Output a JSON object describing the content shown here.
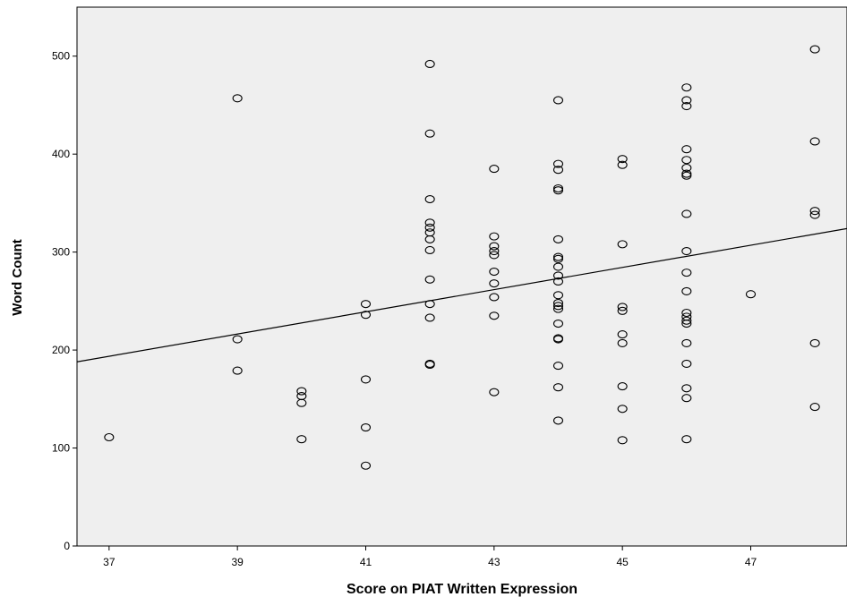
{
  "chart_data": {
    "type": "scatter",
    "title": "",
    "xlabel": "Score on PIAT Written Expression",
    "ylabel": "Word Count",
    "xlim": [
      36.5,
      48.5
    ],
    "ylim": [
      0,
      550
    ],
    "x_ticks": [
      37,
      39,
      41,
      43,
      45,
      47
    ],
    "y_ticks": [
      0,
      100,
      200,
      300,
      400,
      500
    ],
    "x_tick_labels": [
      "37",
      "39",
      "41",
      "43",
      "45",
      "47"
    ],
    "y_tick_labels": [
      "0",
      "100",
      "200",
      "300",
      "400",
      "500"
    ],
    "grid": false,
    "plot_background": "#efefef",
    "marker_color": "#000000",
    "fit_line": {
      "x": [
        36.5,
        48.5
      ],
      "y": [
        188,
        324
      ]
    },
    "points": [
      {
        "x": 37,
        "y": 111
      },
      {
        "x": 39,
        "y": 457
      },
      {
        "x": 39,
        "y": 211
      },
      {
        "x": 39,
        "y": 179
      },
      {
        "x": 40,
        "y": 158
      },
      {
        "x": 40,
        "y": 153
      },
      {
        "x": 40,
        "y": 146
      },
      {
        "x": 40,
        "y": 109
      },
      {
        "x": 41,
        "y": 247
      },
      {
        "x": 41,
        "y": 236
      },
      {
        "x": 41,
        "y": 170
      },
      {
        "x": 41,
        "y": 121
      },
      {
        "x": 41,
        "y": 82
      },
      {
        "x": 42,
        "y": 492
      },
      {
        "x": 42,
        "y": 421
      },
      {
        "x": 42,
        "y": 354
      },
      {
        "x": 42,
        "y": 330
      },
      {
        "x": 42,
        "y": 325
      },
      {
        "x": 42,
        "y": 320
      },
      {
        "x": 42,
        "y": 313
      },
      {
        "x": 42,
        "y": 302
      },
      {
        "x": 42,
        "y": 272
      },
      {
        "x": 42,
        "y": 247
      },
      {
        "x": 42,
        "y": 233
      },
      {
        "x": 42,
        "y": 186
      },
      {
        "x": 42,
        "y": 185
      },
      {
        "x": 43,
        "y": 385
      },
      {
        "x": 43,
        "y": 316
      },
      {
        "x": 43,
        "y": 306
      },
      {
        "x": 43,
        "y": 301
      },
      {
        "x": 43,
        "y": 297
      },
      {
        "x": 43,
        "y": 280
      },
      {
        "x": 43,
        "y": 268
      },
      {
        "x": 43,
        "y": 254
      },
      {
        "x": 43,
        "y": 235
      },
      {
        "x": 43,
        "y": 157
      },
      {
        "x": 44,
        "y": 455
      },
      {
        "x": 44,
        "y": 390
      },
      {
        "x": 44,
        "y": 384
      },
      {
        "x": 44,
        "y": 365
      },
      {
        "x": 44,
        "y": 363
      },
      {
        "x": 44,
        "y": 313
      },
      {
        "x": 44,
        "y": 295
      },
      {
        "x": 44,
        "y": 293
      },
      {
        "x": 44,
        "y": 285
      },
      {
        "x": 44,
        "y": 276
      },
      {
        "x": 44,
        "y": 270
      },
      {
        "x": 44,
        "y": 256
      },
      {
        "x": 44,
        "y": 248
      },
      {
        "x": 44,
        "y": 245
      },
      {
        "x": 44,
        "y": 242
      },
      {
        "x": 44,
        "y": 227
      },
      {
        "x": 44,
        "y": 212
      },
      {
        "x": 44,
        "y": 211
      },
      {
        "x": 44,
        "y": 184
      },
      {
        "x": 44,
        "y": 162
      },
      {
        "x": 44,
        "y": 128
      },
      {
        "x": 45,
        "y": 395
      },
      {
        "x": 45,
        "y": 389
      },
      {
        "x": 45,
        "y": 308
      },
      {
        "x": 45,
        "y": 244
      },
      {
        "x": 45,
        "y": 240
      },
      {
        "x": 45,
        "y": 216
      },
      {
        "x": 45,
        "y": 207
      },
      {
        "x": 45,
        "y": 163
      },
      {
        "x": 45,
        "y": 140
      },
      {
        "x": 45,
        "y": 108
      },
      {
        "x": 46,
        "y": 468
      },
      {
        "x": 46,
        "y": 455
      },
      {
        "x": 46,
        "y": 449
      },
      {
        "x": 46,
        "y": 405
      },
      {
        "x": 46,
        "y": 394
      },
      {
        "x": 46,
        "y": 386
      },
      {
        "x": 46,
        "y": 380
      },
      {
        "x": 46,
        "y": 378
      },
      {
        "x": 46,
        "y": 339
      },
      {
        "x": 46,
        "y": 301
      },
      {
        "x": 46,
        "y": 279
      },
      {
        "x": 46,
        "y": 260
      },
      {
        "x": 46,
        "y": 238
      },
      {
        "x": 46,
        "y": 234
      },
      {
        "x": 46,
        "y": 230
      },
      {
        "x": 46,
        "y": 227
      },
      {
        "x": 46,
        "y": 207
      },
      {
        "x": 46,
        "y": 186
      },
      {
        "x": 46,
        "y": 161
      },
      {
        "x": 46,
        "y": 151
      },
      {
        "x": 46,
        "y": 109
      },
      {
        "x": 47,
        "y": 257
      },
      {
        "x": 48,
        "y": 507
      },
      {
        "x": 48,
        "y": 413
      },
      {
        "x": 48,
        "y": 342
      },
      {
        "x": 48,
        "y": 338
      },
      {
        "x": 48,
        "y": 207
      },
      {
        "x": 48,
        "y": 142
      }
    ]
  }
}
